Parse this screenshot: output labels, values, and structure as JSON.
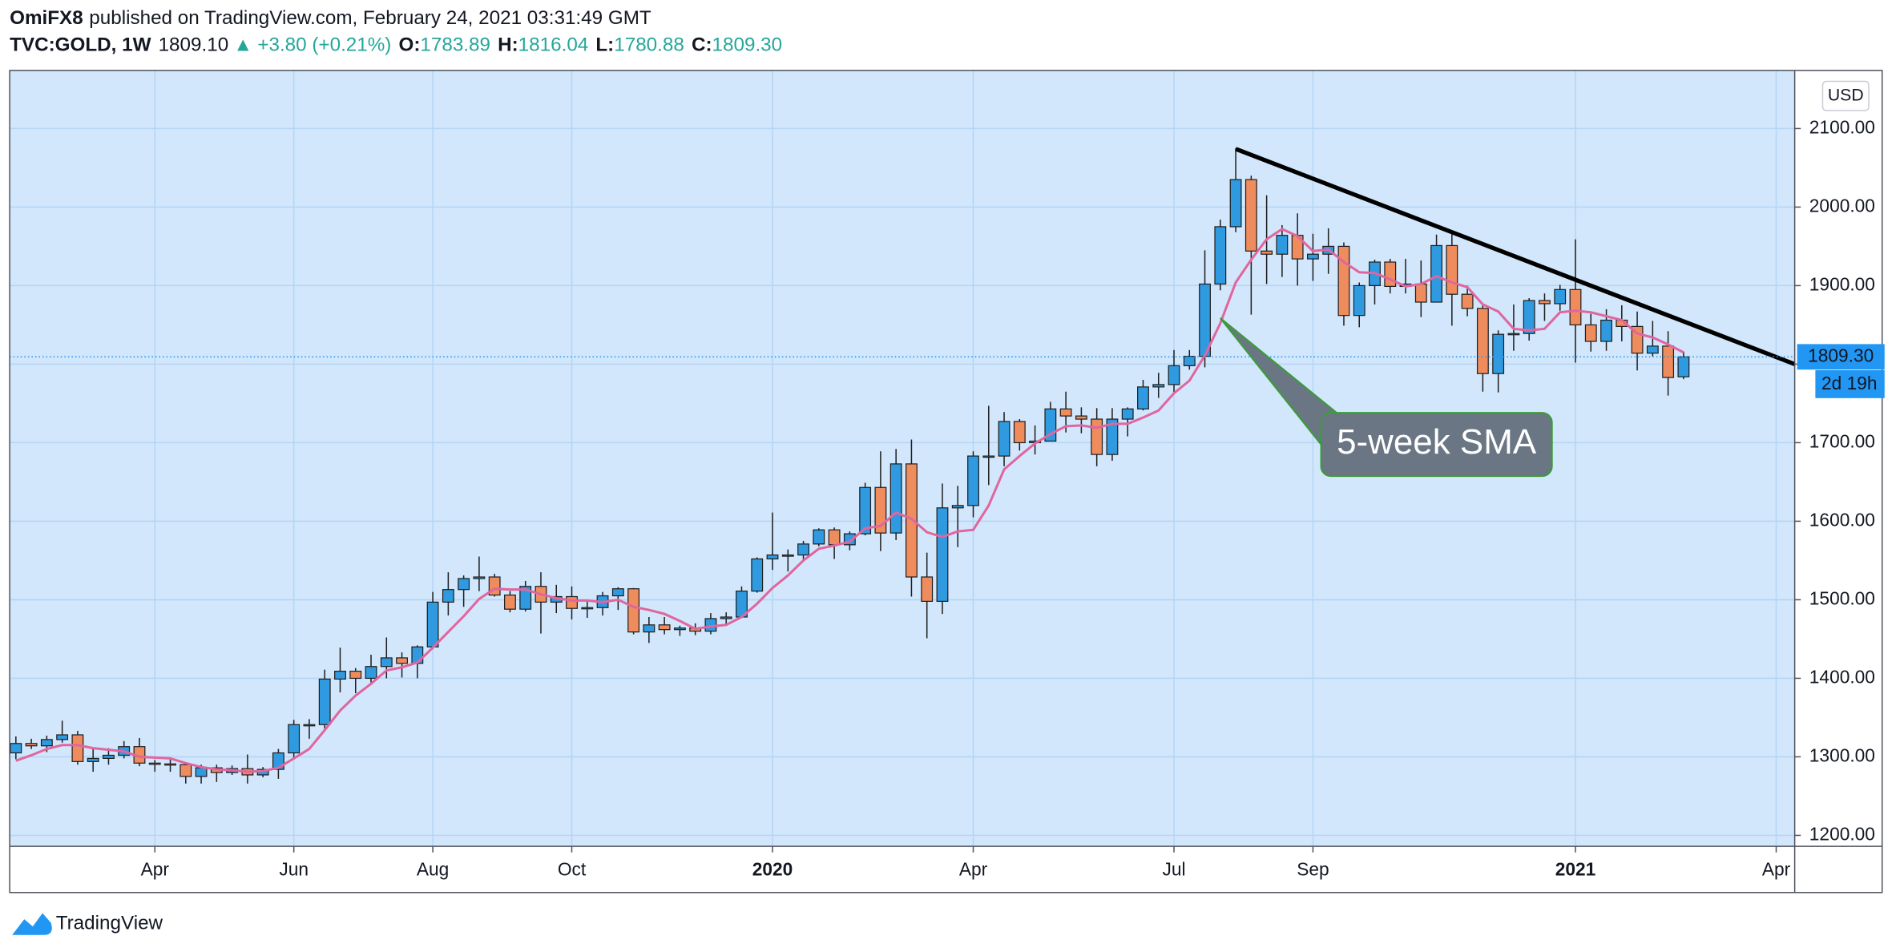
{
  "header": {
    "author": "OmiFX8",
    "published": "published on TradingView.com, February 24, 2021 03:31:49 GMT",
    "symbol": "TVC:GOLD, 1W",
    "last": "1809.10",
    "arrow": "▲",
    "change": "+3.80 (+0.21%)",
    "o_label": "O:",
    "o": "1783.89",
    "h_label": "H:",
    "h": "1816.04",
    "l_label": "L:",
    "l": "1780.88",
    "c_label": "C:",
    "c": "1809.30"
  },
  "chart_data": {
    "type": "candlestick",
    "currency": "USD",
    "up_color": "#2f9ae0",
    "down_color": "#ef8c5e",
    "wick_color": "#1e1e1e",
    "open": [
      1305,
      1317,
      1314,
      1322,
      1328,
      1294,
      1298,
      1302,
      1313,
      1292,
      1291,
      1290,
      1275,
      1286,
      1280,
      1285,
      1277,
      1284,
      1305,
      1341,
      1341,
      1399,
      1409,
      1400,
      1415,
      1426,
      1419,
      1440,
      1497,
      1513,
      1527,
      1529,
      1506,
      1488,
      1517,
      1497,
      1504,
      1489,
      1490,
      1505,
      1514,
      1459,
      1468,
      1462,
      1464,
      1460,
      1476,
      1478,
      1511,
      1552,
      1557,
      1557,
      1571,
      1589,
      1570,
      1584,
      1643,
      1585,
      1673,
      1529,
      1498,
      1617,
      1620,
      1683,
      1683,
      1727,
      1700,
      1702,
      1743,
      1734,
      1730,
      1685,
      1730,
      1743,
      1771,
      1774,
      1798,
      1810,
      1902,
      1975,
      2035,
      1944,
      1940,
      1964,
      1934,
      1940,
      1950,
      1862,
      1900,
      1930,
      1899,
      1902,
      1879,
      1951,
      1889,
      1871,
      1788,
      1838,
      1839,
      1881,
      1877,
      1895,
      1850,
      1829,
      1856,
      1848,
      1814,
      1823,
      1783.89
    ],
    "high": [
      1326,
      1323,
      1327,
      1346,
      1333,
      1310,
      1311,
      1320,
      1324,
      1296,
      1297,
      1292,
      1290,
      1290,
      1289,
      1303,
      1287,
      1310,
      1347,
      1348,
      1411,
      1439,
      1413,
      1430,
      1452,
      1433,
      1442,
      1510,
      1535,
      1531,
      1555,
      1533,
      1511,
      1524,
      1535,
      1519,
      1517,
      1500,
      1510,
      1516,
      1515,
      1478,
      1478,
      1467,
      1470,
      1483,
      1484,
      1517,
      1554,
      1611,
      1564,
      1575,
      1591,
      1592,
      1587,
      1649,
      1689,
      1692,
      1704,
      1560,
      1648,
      1645,
      1689,
      1747,
      1739,
      1730,
      1722,
      1752,
      1765,
      1745,
      1744,
      1744,
      1745,
      1780,
      1789,
      1818,
      1818,
      1945,
      1984,
      2075,
      2040,
      2015,
      1977,
      1992,
      1966,
      1973,
      1955,
      1904,
      1933,
      1934,
      1934,
      1932,
      1965,
      1966,
      1900,
      1875,
      1843,
      1876,
      1884,
      1890,
      1901,
      1959,
      1864,
      1870,
      1875,
      1867,
      1855,
      1842,
      1816.04
    ],
    "low": [
      1297,
      1310,
      1306,
      1318,
      1290,
      1281,
      1290,
      1298,
      1288,
      1281,
      1281,
      1266,
      1266,
      1268,
      1277,
      1266,
      1274,
      1272,
      1297,
      1323,
      1334,
      1382,
      1381,
      1392,
      1400,
      1401,
      1400,
      1437,
      1480,
      1491,
      1511,
      1504,
      1484,
      1485,
      1457,
      1483,
      1475,
      1477,
      1480,
      1487,
      1456,
      1445,
      1456,
      1454,
      1455,
      1456,
      1469,
      1477,
      1509,
      1538,
      1536,
      1549,
      1568,
      1552,
      1563,
      1582,
      1562,
      1576,
      1504,
      1451,
      1482,
      1567,
      1605,
      1646,
      1670,
      1690,
      1685,
      1702,
      1713,
      1712,
      1670,
      1677,
      1708,
      1741,
      1757,
      1764,
      1793,
      1796,
      1894,
      1968,
      1863,
      1902,
      1911,
      1900,
      1906,
      1915,
      1849,
      1847,
      1876,
      1890,
      1890,
      1860,
      1879,
      1849,
      1861,
      1765,
      1764,
      1817,
      1830,
      1855,
      1868,
      1802,
      1816,
      1817,
      1829,
      1792,
      1810,
      1760,
      1780.88
    ],
    "close": [
      1317,
      1314,
      1322,
      1328,
      1294,
      1298,
      1302,
      1313,
      1292,
      1291,
      1290,
      1275,
      1286,
      1280,
      1285,
      1277,
      1284,
      1305,
      1341,
      1341,
      1399,
      1409,
      1400,
      1415,
      1426,
      1419,
      1440,
      1497,
      1513,
      1527,
      1529,
      1506,
      1488,
      1517,
      1497,
      1504,
      1489,
      1490,
      1505,
      1514,
      1459,
      1468,
      1462,
      1464,
      1460,
      1476,
      1478,
      1511,
      1552,
      1557,
      1557,
      1571,
      1589,
      1570,
      1584,
      1643,
      1585,
      1673,
      1529,
      1498,
      1617,
      1620,
      1683,
      1683,
      1727,
      1700,
      1702,
      1743,
      1734,
      1730,
      1685,
      1730,
      1743,
      1771,
      1774,
      1798,
      1810,
      1902,
      1975,
      2035,
      1944,
      1940,
      1964,
      1934,
      1940,
      1950,
      1862,
      1900,
      1930,
      1899,
      1902,
      1879,
      1951,
      1889,
      1871,
      1788,
      1838,
      1839,
      1881,
      1877,
      1895,
      1850,
      1829,
      1856,
      1848,
      1814,
      1823,
      1783,
      1809.3
    ],
    "sma": {
      "color": "#e0669f",
      "values": [
        1295,
        1302,
        1310,
        1315,
        1315,
        1311,
        1309,
        1307,
        1300,
        1299,
        1298,
        1292,
        1287,
        1284,
        1283,
        1281,
        1282,
        1286,
        1298,
        1310,
        1334,
        1359,
        1378,
        1393,
        1410,
        1414,
        1420,
        1439,
        1459,
        1479,
        1501,
        1514,
        1513,
        1513,
        1507,
        1502,
        1499,
        1499,
        1497,
        1500,
        1491,
        1487,
        1482,
        1473,
        1463,
        1466,
        1468,
        1478,
        1495,
        1515,
        1531,
        1550,
        1565,
        1569,
        1574,
        1591,
        1594,
        1611,
        1603,
        1586,
        1580,
        1587,
        1589,
        1620,
        1666,
        1683,
        1699,
        1711,
        1721,
        1722,
        1719,
        1724,
        1724,
        1732,
        1741,
        1763,
        1779,
        1811,
        1852,
        1904,
        1933,
        1959,
        1972,
        1963,
        1944,
        1946,
        1930,
        1917,
        1916,
        1908,
        1899,
        1902,
        1912,
        1904,
        1898,
        1876,
        1867,
        1845,
        1843,
        1845,
        1866,
        1868,
        1866,
        1861,
        1856,
        1839,
        1834,
        1825,
        1815
      ]
    },
    "trendline": {
      "x": [
        79,
        115.2
      ],
      "y": [
        2074,
        1800
      ],
      "color": "#000000"
    },
    "annotation": "5-week SMA",
    "last_price_label": "1809.30",
    "countdown": "2d 19h",
    "last_color": "#2196f3",
    "xlim": [
      -0.4,
      115.2
    ],
    "ylim": [
      1186,
      2174
    ],
    "xticks": [
      {
        "value": 9,
        "label": "Apr"
      },
      {
        "value": 18,
        "label": "Jun"
      },
      {
        "value": 27,
        "label": "Aug"
      },
      {
        "value": 36,
        "label": "Oct"
      },
      {
        "value": 49,
        "label": "2020"
      },
      {
        "value": 62,
        "label": "Apr"
      },
      {
        "value": 75,
        "label": "Jul"
      },
      {
        "value": 84,
        "label": "Sep"
      },
      {
        "value": 101,
        "label": "2021"
      },
      {
        "value": 114,
        "label": "Apr"
      }
    ],
    "yticks": [
      {
        "value": 1200,
        "label": "1200.00"
      },
      {
        "value": 1300,
        "label": "1300.00"
      },
      {
        "value": 1400,
        "label": "1400.00"
      },
      {
        "value": 1500,
        "label": "1500.00"
      },
      {
        "value": 1600,
        "label": "1600.00"
      },
      {
        "value": 1700,
        "label": "1700.00"
      },
      {
        "value": 1800,
        "label": "1800.00"
      },
      {
        "value": 1900,
        "label": "1900.00"
      },
      {
        "value": 2000,
        "label": "2000.00"
      },
      {
        "value": 2100,
        "label": "2100.00"
      }
    ],
    "grid": true
  },
  "footer": {
    "brand": "TradingView"
  }
}
